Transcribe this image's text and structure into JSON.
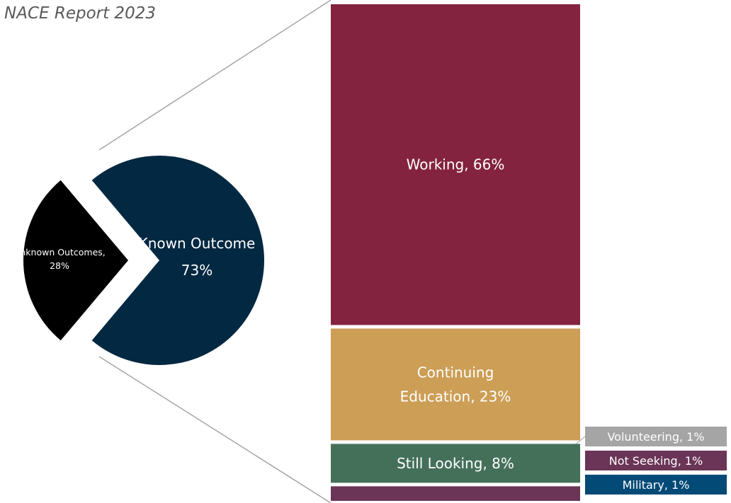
{
  "title": "NACE Report 2023",
  "chart_data": {
    "type": "bar-of-pie",
    "pie": {
      "slices": [
        {
          "label": "Known Outcomes",
          "display": "Known Outcome",
          "value": 73,
          "value_label": "73%",
          "color": "#032841"
        },
        {
          "label": "Unknown Outcomes",
          "display": "Unknown Outcomes,",
          "value": 28,
          "value_label": "28%",
          "color": "#000000",
          "exploded": true
        }
      ]
    },
    "bar": {
      "segments": [
        {
          "label": "Working",
          "value": 66,
          "text": "Working, 66%",
          "color": "#84233F",
          "label_color": "#ffffff"
        },
        {
          "label": "Continuing Education",
          "value": 23,
          "text": [
            "Continuing",
            "Education, 23%"
          ],
          "color": "#CC9E56",
          "label_color": "#ffffff"
        },
        {
          "label": "Still Looking",
          "value": 8,
          "text": "Still Looking, 8%",
          "color": "#44705A",
          "label_color": "#ffffff"
        },
        {
          "label": "Volunteering",
          "value": 1,
          "text": "Volunteering, 1%",
          "color": "#A5A5A5",
          "label_color": "#ffffff"
        },
        {
          "label": "Not Seeking",
          "value": 1,
          "text": "Not Seeking, 1%",
          "color": "#6A3557",
          "label_color": "#ffffff"
        },
        {
          "label": "Military",
          "value": 1,
          "text": "Military, 1%",
          "color": "#034A76",
          "label_color": "#ffffff"
        }
      ]
    },
    "legend": "none",
    "grid": false
  }
}
